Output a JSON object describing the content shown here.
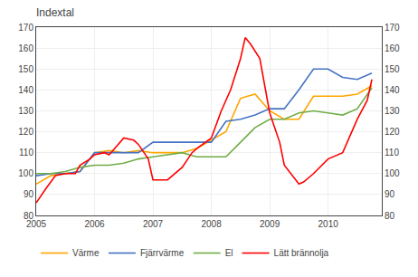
{
  "chart_data": {
    "type": "line",
    "title": "Indextal",
    "xlim": [
      2005.0,
      2010.92
    ],
    "xticks": [
      2005,
      2006,
      2007,
      2008,
      2009,
      2010
    ],
    "ylim": [
      80,
      170
    ],
    "yticks": [
      80,
      90,
      100,
      110,
      120,
      130,
      140,
      150,
      160,
      170
    ],
    "y2lim": [
      80,
      170
    ],
    "y2ticks": [
      80,
      90,
      100,
      110,
      120,
      130,
      140,
      150,
      160,
      170
    ],
    "grid": true,
    "legend": "lower left",
    "series": [
      {
        "name": "Värme",
        "color": "#FFA500",
        "x": [
          2005.0,
          2005.25,
          2005.5,
          2005.75,
          2006.0,
          2006.25,
          2006.5,
          2006.75,
          2007.0,
          2007.25,
          2007.5,
          2007.75,
          2008.0,
          2008.25,
          2008.5,
          2008.75,
          2009.0,
          2009.25,
          2009.5,
          2009.75,
          2010.0,
          2010.25,
          2010.5,
          2010.75
        ],
        "values": [
          95,
          99,
          100,
          101,
          110,
          111,
          110,
          111,
          110,
          110,
          110,
          112,
          116,
          120,
          136,
          138,
          130,
          126,
          126,
          137,
          137,
          137,
          138,
          142
        ]
      },
      {
        "name": "Fjärrvärme",
        "color": "#4472C4",
        "x": [
          2005.0,
          2005.25,
          2005.5,
          2005.75,
          2006.0,
          2006.25,
          2006.5,
          2006.75,
          2007.0,
          2007.25,
          2007.5,
          2007.75,
          2008.0,
          2008.25,
          2008.5,
          2008.75,
          2009.0,
          2009.25,
          2009.5,
          2009.75,
          2010.0,
          2010.25,
          2010.5,
          2010.75
        ],
        "values": [
          99,
          100,
          100,
          101,
          110,
          110,
          110,
          110,
          115,
          115,
          115,
          115,
          115,
          125,
          126,
          128,
          131,
          131,
          140,
          150,
          150,
          146,
          145,
          148
        ]
      },
      {
        "name": "El",
        "color": "#70AD47",
        "x": [
          2005.0,
          2005.25,
          2005.5,
          2005.75,
          2006.0,
          2006.25,
          2006.5,
          2006.75,
          2007.0,
          2007.25,
          2007.5,
          2007.75,
          2008.0,
          2008.25,
          2008.5,
          2008.75,
          2009.0,
          2009.25,
          2009.5,
          2009.75,
          2010.0,
          2010.25,
          2010.5,
          2010.75
        ],
        "values": [
          100,
          100,
          101,
          103,
          104,
          104,
          105,
          107,
          108,
          109,
          110,
          108,
          108,
          108,
          115,
          122,
          126,
          126,
          129,
          130,
          129,
          128,
          131,
          141
        ]
      },
      {
        "name": "Lätt brännolja",
        "color": "#FF0000",
        "x": [
          2005.0,
          2005.17,
          2005.33,
          2005.5,
          2005.67,
          2005.75,
          2005.92,
          2006.0,
          2006.17,
          2006.25,
          2006.5,
          2006.67,
          2006.75,
          2006.92,
          2007.0,
          2007.25,
          2007.5,
          2007.67,
          2007.75,
          2008.0,
          2008.17,
          2008.33,
          2008.5,
          2008.58,
          2008.67,
          2008.83,
          2009.0,
          2009.17,
          2009.25,
          2009.5,
          2009.58,
          2009.75,
          2010.0,
          2010.25,
          2010.5,
          2010.67,
          2010.75
        ],
        "values": [
          86,
          93,
          99,
          100,
          100,
          104,
          107,
          109,
          110,
          109,
          117,
          116,
          114,
          107,
          97,
          97,
          103,
          110,
          112,
          117,
          130,
          140,
          155,
          165,
          162,
          155,
          129,
          115,
          104,
          95,
          96,
          100,
          107,
          110,
          126,
          135,
          145
        ]
      }
    ]
  }
}
